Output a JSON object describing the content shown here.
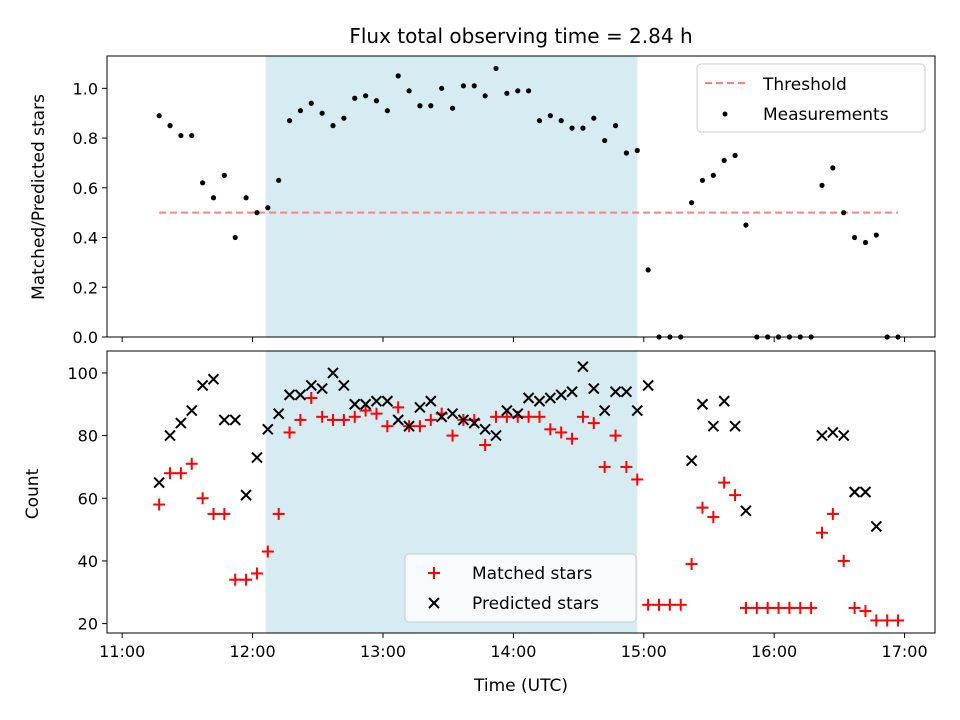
{
  "title": "Flux total observing time = 2.84 h",
  "colors": {
    "threshold": "#ff7f7f",
    "measurements": "#000000",
    "matched": "#ff0000",
    "predicted": "#000000",
    "span": "#add8e6"
  },
  "chart_data": [
    {
      "type": "scatter",
      "ylabel": "Matched/Predicted stars",
      "ylim": [
        0,
        1.13
      ],
      "yticks": [
        "0.0",
        "0.2",
        "0.4",
        "0.6",
        "0.8",
        "1.0"
      ],
      "highlight_span": [
        "12:06",
        "14:57"
      ],
      "legend_position": "top-right",
      "threshold": {
        "name": "Threshold",
        "value": 0.5,
        "x_range": [
          "11:17",
          "16:57"
        ]
      },
      "series": [
        {
          "name": "Measurements",
          "x": [
            "11:17",
            "11:22",
            "11:27",
            "11:32",
            "11:37",
            "11:42",
            "11:47",
            "11:52",
            "11:57",
            "12:02",
            "12:07",
            "12:12",
            "12:17",
            "12:22",
            "12:27",
            "12:32",
            "12:37",
            "12:42",
            "12:47",
            "12:52",
            "12:57",
            "13:02",
            "13:07",
            "13:12",
            "13:17",
            "13:22",
            "13:27",
            "13:32",
            "13:37",
            "13:42",
            "13:47",
            "13:52",
            "13:57",
            "14:02",
            "14:07",
            "14:12",
            "14:17",
            "14:22",
            "14:27",
            "14:32",
            "14:37",
            "14:42",
            "14:47",
            "14:52",
            "14:57",
            "15:02",
            "15:07",
            "15:12",
            "15:17",
            "15:22",
            "15:27",
            "15:32",
            "15:37",
            "15:42",
            "15:47",
            "15:52",
            "15:57",
            "16:02",
            "16:07",
            "16:12",
            "16:17",
            "16:22",
            "16:27",
            "16:32",
            "16:37",
            "16:42",
            "16:47",
            "16:52",
            "16:57"
          ],
          "y": [
            0.89,
            0.85,
            0.81,
            0.81,
            0.62,
            0.56,
            0.65,
            0.4,
            0.56,
            0.5,
            0.52,
            0.63,
            0.87,
            0.91,
            0.94,
            0.9,
            0.85,
            0.88,
            0.96,
            0.97,
            0.95,
            0.91,
            1.05,
            0.99,
            0.93,
            0.93,
            1.0,
            0.92,
            1.01,
            1.01,
            0.97,
            1.08,
            0.98,
            0.99,
            0.99,
            0.87,
            0.89,
            0.87,
            0.84,
            0.84,
            0.88,
            0.79,
            0.85,
            0.74,
            0.75,
            0.27,
            0.0,
            0.0,
            0.0,
            0.54,
            0.63,
            0.65,
            0.71,
            0.73,
            0.45,
            0.0,
            0.0,
            0.0,
            0.0,
            0.0,
            0.0,
            0.61,
            0.68,
            0.5,
            0.4,
            0.38,
            0.41,
            0.0,
            0.0
          ]
        }
      ]
    },
    {
      "type": "scatter",
      "xlabel": "Time (UTC)",
      "ylabel": "Count",
      "ylim": [
        17,
        107
      ],
      "yticks": [
        "20",
        "40",
        "60",
        "80",
        "100"
      ],
      "xticks": [
        "11:00",
        "12:00",
        "13:00",
        "14:00",
        "15:00",
        "16:00",
        "17:00"
      ],
      "xlim": [
        "10:53",
        "17:14"
      ],
      "highlight_span": [
        "12:06",
        "14:57"
      ],
      "legend_position": "bottom-center",
      "series": [
        {
          "name": "Matched stars",
          "marker": "+",
          "x": [
            "11:17",
            "11:22",
            "11:27",
            "11:32",
            "11:37",
            "11:42",
            "11:47",
            "11:52",
            "11:57",
            "12:02",
            "12:07",
            "12:12",
            "12:17",
            "12:22",
            "12:27",
            "12:32",
            "12:37",
            "12:42",
            "12:47",
            "12:52",
            "12:57",
            "13:02",
            "13:07",
            "13:12",
            "13:17",
            "13:22",
            "13:27",
            "13:32",
            "13:37",
            "13:42",
            "13:47",
            "13:52",
            "13:57",
            "14:02",
            "14:07",
            "14:12",
            "14:17",
            "14:22",
            "14:27",
            "14:32",
            "14:37",
            "14:42",
            "14:47",
            "14:52",
            "14:57",
            "15:02",
            "15:07",
            "15:12",
            "15:17",
            "15:22",
            "15:27",
            "15:32",
            "15:37",
            "15:42",
            "15:47",
            "15:52",
            "15:57",
            "16:02",
            "16:07",
            "16:12",
            "16:17",
            "16:22",
            "16:27",
            "16:32",
            "16:37",
            "16:42",
            "16:47",
            "16:52",
            "16:57"
          ],
          "y": [
            58,
            68,
            68,
            71,
            60,
            55,
            55,
            34,
            34,
            36,
            43,
            55,
            81,
            85,
            92,
            86,
            85,
            85,
            86,
            88,
            87,
            83,
            89,
            83,
            83,
            85,
            87,
            80,
            85,
            85,
            77,
            86,
            86,
            86,
            86,
            86,
            82,
            81,
            79,
            86,
            84,
            70,
            80,
            70,
            66,
            26,
            26,
            26,
            26,
            39,
            57,
            54,
            65,
            61,
            25,
            25,
            25,
            25,
            25,
            25,
            25,
            49,
            55,
            40,
            25,
            24,
            21,
            21,
            21
          ]
        },
        {
          "name": "Predicted stars",
          "marker": "x",
          "x": [
            "11:17",
            "11:22",
            "11:27",
            "11:32",
            "11:37",
            "11:42",
            "11:47",
            "11:52",
            "11:57",
            "12:02",
            "12:07",
            "12:12",
            "12:17",
            "12:22",
            "12:27",
            "12:32",
            "12:37",
            "12:42",
            "12:47",
            "12:52",
            "12:57",
            "13:02",
            "13:07",
            "13:12",
            "13:17",
            "13:22",
            "13:27",
            "13:32",
            "13:37",
            "13:42",
            "13:47",
            "13:52",
            "13:57",
            "14:02",
            "14:07",
            "14:12",
            "14:17",
            "14:22",
            "14:27",
            "14:32",
            "14:37",
            "14:42",
            "14:47",
            "14:52",
            "14:57",
            "15:02",
            "15:22",
            "15:27",
            "15:32",
            "15:37",
            "15:42",
            "15:47",
            "16:22",
            "16:27",
            "16:32",
            "16:37",
            "16:42",
            "16:47"
          ],
          "y": [
            65,
            80,
            84,
            88,
            96,
            98,
            85,
            85,
            61,
            73,
            82,
            87,
            93,
            93,
            96,
            95,
            100,
            96,
            90,
            90,
            91,
            91,
            85,
            83,
            89,
            91,
            86,
            87,
            85,
            84,
            82,
            80,
            88,
            87,
            92,
            91,
            92,
            93,
            94,
            102,
            95,
            88,
            94,
            94,
            88,
            96,
            72,
            90,
            83,
            91,
            83,
            56,
            80,
            81,
            80,
            62,
            62,
            51
          ]
        }
      ]
    }
  ]
}
